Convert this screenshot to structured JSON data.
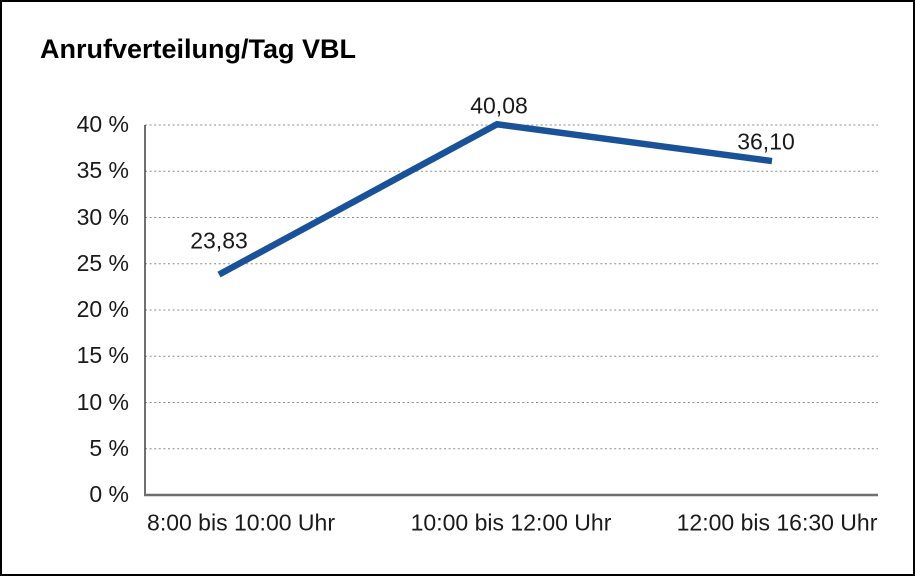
{
  "chart_data": {
    "type": "line",
    "title": "Anrufverteilung/Tag VBL",
    "categories": [
      "8:00 bis 10:00 Uhr",
      "10:00 bis 12:00 Uhr",
      "12:00 bis 16:30 Uhr"
    ],
    "values": [
      23.83,
      40.08,
      36.1
    ],
    "point_labels": [
      "23,83",
      "40,08",
      "36,10"
    ],
    "ylim": [
      0,
      40
    ],
    "ytick_values": [
      0,
      5,
      10,
      15,
      20,
      25,
      30,
      35,
      40
    ],
    "ytick_labels": [
      "0 %",
      "5 %",
      "10 %",
      "15 %",
      "20 %",
      "25 %",
      "30 %",
      "35 %",
      "40 %"
    ],
    "xlabel": "",
    "ylabel": "",
    "grid": "horizontal-dotted",
    "legend": "none",
    "colors": {
      "line": "#1A5299",
      "text": "#1A1A1A",
      "title": "#000000",
      "grid": "#8C8C8C",
      "y_axis": "#404040",
      "x_axis": "#6E6E6E",
      "background": "#FFFFFF",
      "frame_border": "#000000"
    }
  }
}
